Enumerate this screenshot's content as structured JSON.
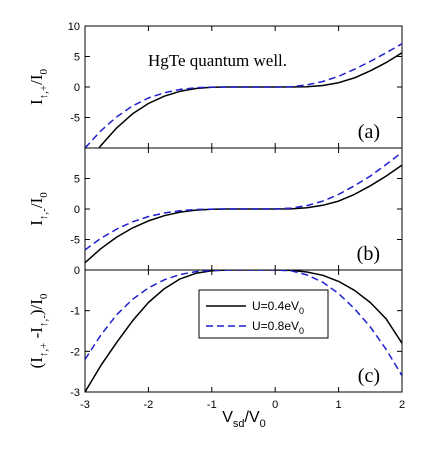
{
  "chart_data": [
    {
      "type": "line",
      "panel_label": "(a)",
      "annotation": "HgTe quantum well.",
      "ylabel": {
        "main": "I",
        "sub": "↑,+",
        "tail": "/I",
        "tail_sub": "0"
      },
      "xlim": [
        -3,
        2
      ],
      "ylim": [
        -10,
        10
      ],
      "y_ticks": [
        -5,
        0,
        5,
        10
      ],
      "series": [
        {
          "name": "U=0.4eV0",
          "color": "#000000",
          "dash": "solid",
          "x": [
            -3,
            -2.75,
            -2.5,
            -2.25,
            -2,
            -1.75,
            -1.5,
            -1.25,
            -1,
            -0.75,
            -0.5,
            0,
            0.25,
            0.5,
            0.75,
            1,
            1.25,
            1.5,
            1.75,
            2
          ],
          "y": [
            -13.1,
            -9.6,
            -6.7,
            -4.4,
            -2.7,
            -1.5,
            -0.7,
            -0.25,
            -0.05,
            0,
            0,
            0,
            0,
            0.05,
            0.25,
            0.7,
            1.5,
            2.65,
            4.0,
            5.6
          ]
        },
        {
          "name": "U=0.8eV0",
          "color": "#1f1fd0",
          "dash": "dashed",
          "x": [
            -3,
            -2.75,
            -2.5,
            -2.25,
            -2,
            -1.75,
            -1.5,
            -1.25,
            -1,
            -0.75,
            -0.5,
            -0.25,
            0,
            0.25,
            0.5,
            0.75,
            1,
            1.25,
            1.5,
            1.75,
            2
          ],
          "y": [
            -10,
            -7.2,
            -4.9,
            -3.1,
            -1.8,
            -0.95,
            -0.4,
            -0.12,
            -0.02,
            0,
            0,
            0,
            0,
            0.05,
            0.35,
            0.9,
            1.75,
            2.9,
            4.2,
            5.6,
            7.1
          ]
        }
      ]
    },
    {
      "type": "line",
      "panel_label": "(b)",
      "ylabel": {
        "main": "I",
        "sub": "↑,-",
        "tail": "/I",
        "tail_sub": "0"
      },
      "xlim": [
        -3,
        2
      ],
      "ylim": [
        -10,
        10
      ],
      "y_ticks": [
        -5,
        0,
        5
      ],
      "series": [
        {
          "name": "U=0.4eV0",
          "color": "#000000",
          "dash": "solid",
          "x": [
            -3,
            -2.75,
            -2.5,
            -2.25,
            -2,
            -1.75,
            -1.5,
            -1.25,
            -1,
            -0.75,
            -0.5,
            0,
            0.25,
            0.5,
            0.75,
            1,
            1.25,
            1.5,
            1.75,
            2
          ],
          "y": [
            -8.8,
            -6.5,
            -4.6,
            -3.1,
            -1.95,
            -1.1,
            -0.5,
            -0.18,
            -0.04,
            0,
            0,
            0,
            0.02,
            0.2,
            0.6,
            1.3,
            2.4,
            3.8,
            5.4,
            7.2
          ]
        },
        {
          "name": "U=0.8eV0",
          "color": "#1f1fd0",
          "dash": "dashed",
          "x": [
            -3,
            -2.75,
            -2.5,
            -2.25,
            -2,
            -1.75,
            -1.5,
            -1.25,
            -1,
            -0.75,
            -0.5,
            -0.25,
            0,
            0.25,
            0.5,
            0.75,
            1,
            1.25,
            1.5,
            1.75,
            2
          ],
          "y": [
            -6.7,
            -4.8,
            -3.3,
            -2.1,
            -1.25,
            -0.65,
            -0.28,
            -0.08,
            -0.01,
            0,
            0,
            0,
            0.02,
            0.15,
            0.55,
            1.3,
            2.4,
            3.8,
            5.4,
            7.3,
            9.3
          ]
        }
      ]
    },
    {
      "type": "line",
      "panel_label": "(c)",
      "ylabel": {
        "lead": "(I",
        "sub1": "↑,+",
        "mid": " -I",
        "sub2": "↑,-",
        "tail": ")/I",
        "tail_sub": "0"
      },
      "xlabel": {
        "main": "V",
        "main_sub": "sd",
        "tail": "/V",
        "tail_sub": "0"
      },
      "xlim": [
        -3,
        2
      ],
      "ylim": [
        -3,
        0
      ],
      "x_ticks": [
        -3,
        -2,
        -1,
        0,
        1,
        2
      ],
      "y_ticks": [
        -3,
        -2,
        -1,
        0
      ],
      "legend": {
        "placement": "center-right",
        "entries": [
          {
            "main": "U=0.4eV",
            "sub": "0"
          },
          {
            "main": "U=0.8eV",
            "sub": "0"
          }
        ]
      },
      "series": [
        {
          "name": "U=0.4eV0",
          "color": "#000000",
          "dash": "solid",
          "x": [
            -3,
            -2.75,
            -2.5,
            -2.25,
            -2,
            -1.75,
            -1.5,
            -1.25,
            -1,
            -0.75,
            -0.5,
            0,
            0.25,
            0.5,
            0.75,
            1,
            1.25,
            1.5,
            1.75,
            2
          ],
          "y": [
            -3.0,
            -2.35,
            -1.78,
            -1.25,
            -0.8,
            -0.46,
            -0.22,
            -0.08,
            -0.02,
            0,
            0,
            0,
            -0.01,
            -0.05,
            -0.13,
            -0.28,
            -0.5,
            -0.8,
            -1.2,
            -1.8
          ]
        },
        {
          "name": "U=0.8eV0",
          "color": "#1f1fd0",
          "dash": "dashed",
          "x": [
            -3,
            -2.75,
            -2.5,
            -2.25,
            -2,
            -1.75,
            -1.5,
            -1.25,
            -1,
            -0.75,
            -0.5,
            0,
            0.25,
            0.5,
            0.75,
            1,
            1.25,
            1.5,
            1.75,
            2
          ],
          "y": [
            -2.2,
            -1.6,
            -1.1,
            -0.72,
            -0.44,
            -0.24,
            -0.11,
            -0.04,
            -0.01,
            0,
            0,
            0,
            -0.02,
            -0.12,
            -0.3,
            -0.58,
            -0.95,
            -1.4,
            -1.95,
            -2.6
          ]
        }
      ]
    }
  ]
}
